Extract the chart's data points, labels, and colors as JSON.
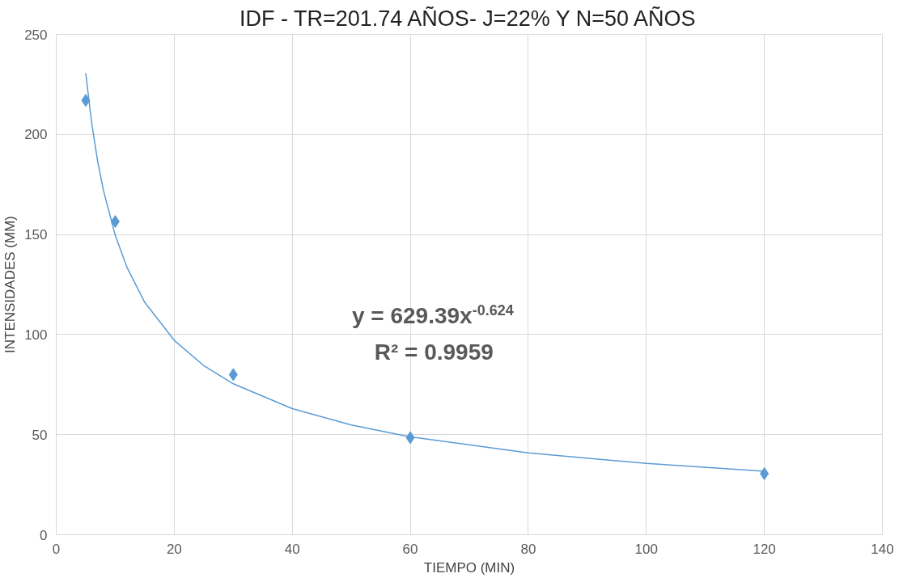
{
  "chart_data": {
    "type": "scatter",
    "title": "IDF - TR=201.74 AÑOS- J=22% Y N=50 AÑOS",
    "xlabel": "TIEMPO (MIN)",
    "ylabel": "INTENSIDADES (MM)",
    "xlim": [
      0,
      140
    ],
    "xticks": [
      0,
      20,
      40,
      60,
      80,
      100,
      120,
      140
    ],
    "ylim": [
      0,
      250
    ],
    "yticks": [
      0,
      50,
      100,
      150,
      200,
      250
    ],
    "grid": true,
    "series": [
      {
        "marker": "diamond",
        "color": "#5b9bd5",
        "x": [
          5,
          10,
          30,
          60,
          120
        ],
        "values": [
          217,
          156.5,
          80,
          48.5,
          30.5
        ]
      },
      {
        "type": "line",
        "marker": "none",
        "line_style": "solid",
        "color": "#5b9bd5",
        "x": [
          5,
          6,
          7,
          8,
          10,
          12,
          15,
          20,
          25,
          30,
          40,
          50,
          60,
          80,
          100,
          120
        ],
        "values": [
          230.6,
          205.8,
          186.9,
          172.0,
          149.6,
          133.5,
          116.1,
          97.1,
          84.5,
          75.4,
          63.0,
          54.8,
          48.9,
          40.9,
          35.6,
          31.7
        ]
      }
    ],
    "annotations": [
      "y = 629.39x$^{-0.624}$",
      "R² = 0.9959"
    ]
  }
}
